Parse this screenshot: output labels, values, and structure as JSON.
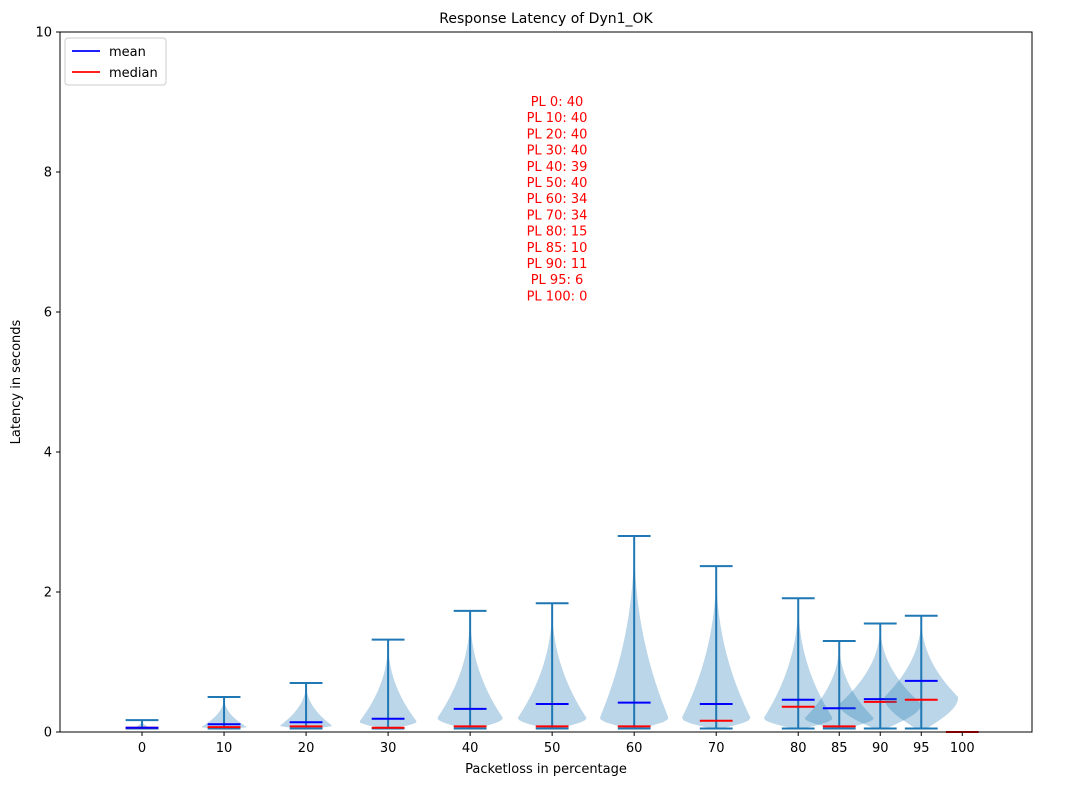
{
  "chart_data": {
    "type": "violin",
    "title": "Response Latency of Dyn1_OK",
    "xlabel": "Packetloss in percentage",
    "ylabel": "Latency in seconds",
    "ylim": [
      0,
      10
    ],
    "yticks": [
      "0",
      "2",
      "4",
      "6",
      "8",
      "10"
    ],
    "categories": [
      "0",
      "10",
      "20",
      "30",
      "40",
      "50",
      "60",
      "70",
      "80",
      "85",
      "90",
      "95",
      "100"
    ],
    "x": [
      0,
      10,
      20,
      30,
      40,
      50,
      60,
      70,
      80,
      85,
      90,
      95,
      100
    ],
    "max": [
      0.17,
      0.5,
      0.7,
      1.32,
      1.73,
      1.84,
      2.8,
      2.37,
      1.91,
      1.3,
      1.55,
      1.66,
      0
    ],
    "min": [
      0.05,
      0.05,
      0.05,
      0.05,
      0.05,
      0.05,
      0.05,
      0.05,
      0.05,
      0.05,
      0.05,
      0.05,
      0
    ],
    "mean": [
      0.06,
      0.11,
      0.14,
      0.19,
      0.33,
      0.4,
      0.42,
      0.4,
      0.46,
      0.34,
      0.47,
      0.73,
      0
    ],
    "median": [
      0.06,
      0.07,
      0.08,
      0.06,
      0.08,
      0.08,
      0.08,
      0.16,
      0.36,
      0.08,
      0.43,
      0.46,
      0
    ],
    "violin_width": [
      0.12,
      0.28,
      0.32,
      0.35,
      0.4,
      0.42,
      0.42,
      0.42,
      0.42,
      0.42,
      0.5,
      0.45,
      0
    ],
    "mode": [
      0.05,
      0.07,
      0.09,
      0.15,
      0.2,
      0.2,
      0.2,
      0.2,
      0.2,
      0.2,
      0.4,
      0.5,
      0
    ],
    "legend": [
      {
        "label": "mean",
        "color": "#0000ff"
      },
      {
        "label": "median",
        "color": "#ff0000"
      }
    ],
    "legend_position": "top-left",
    "annotations": [
      "PL 0: 40",
      "PL 10: 40",
      "PL 20: 40",
      "PL 30: 40",
      "PL 40: 39",
      "PL 50: 40",
      "PL 60: 34",
      "PL 70: 34",
      "PL 80: 15",
      "PL 85: 10",
      "PL 90: 11",
      "PL 95: 6",
      "PL 100: 0"
    ],
    "annotation_color": "#ff0000",
    "body_color": "#1f77b4",
    "body_alpha": 0.3,
    "grid": false
  }
}
